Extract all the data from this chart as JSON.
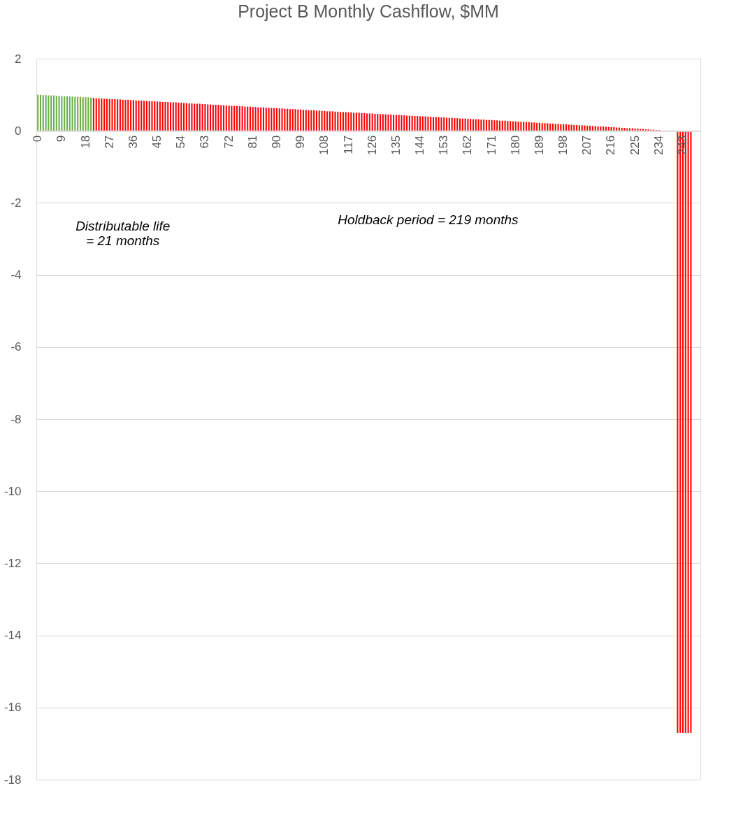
{
  "chart_data": {
    "type": "bar",
    "title": "Project B Monthly Cashflow, $MM",
    "categories": [
      "0",
      null,
      null,
      null,
      null,
      null,
      null,
      null,
      null,
      "9",
      null,
      null,
      null,
      null,
      null,
      null,
      null,
      null,
      "18",
      null,
      null,
      null,
      null,
      null,
      null,
      null,
      null,
      "27",
      null,
      null,
      null,
      null,
      null,
      null,
      null,
      null,
      "36",
      null,
      null,
      null,
      null,
      null,
      null,
      null,
      null,
      "45",
      null,
      null,
      null,
      null,
      null,
      null,
      null,
      null,
      "54",
      null,
      null,
      null,
      null,
      null,
      null,
      null,
      null,
      "63",
      null,
      null,
      null,
      null,
      null,
      null,
      null,
      null,
      "72",
      null,
      null,
      null,
      null,
      null,
      null,
      null,
      null,
      "81",
      null,
      null,
      null,
      null,
      null,
      null,
      null,
      null,
      "90",
      null,
      null,
      null,
      null,
      null,
      null,
      null,
      null,
      "99",
      null,
      null,
      null,
      null,
      null,
      null,
      null,
      null,
      "108",
      null,
      null,
      null,
      null,
      null,
      null,
      null,
      null,
      "117",
      null,
      null,
      null,
      null,
      null,
      null,
      null,
      null,
      "126",
      null,
      null,
      null,
      null,
      null,
      null,
      null,
      null,
      "135",
      null,
      null,
      null,
      null,
      null,
      null,
      null,
      null,
      "144",
      null,
      null,
      null,
      null,
      null,
      null,
      null,
      null,
      "153",
      null,
      null,
      null,
      null,
      null,
      null,
      null,
      null,
      "162",
      null,
      null,
      null,
      null,
      null,
      null,
      null,
      null,
      "171",
      null,
      null,
      null,
      null,
      null,
      null,
      null,
      null,
      "180",
      null,
      null,
      null,
      null,
      null,
      null,
      null,
      null,
      "189",
      null,
      null,
      null,
      null,
      null,
      null,
      null,
      null,
      "198",
      null,
      null,
      null,
      null,
      null,
      null,
      null,
      null,
      "207",
      null,
      null,
      null,
      null,
      null,
      null,
      null,
      null,
      "216",
      null,
      null,
      null,
      null,
      null,
      null,
      null,
      null,
      "225",
      null,
      null,
      null,
      null,
      null,
      null,
      null,
      null,
      "234",
      null,
      null,
      null,
      null,
      null,
      null,
      null,
      null,
      "243",
      null,
      null,
      null,
      null,
      null,
      null
    ],
    "values": [
      1.0,
      1.0,
      0.99,
      0.99,
      0.98,
      0.98,
      0.98,
      0.97,
      0.97,
      0.96,
      0.96,
      0.96,
      0.95,
      0.95,
      0.94,
      0.94,
      0.94,
      0.93,
      0.93,
      0.93,
      0.92,
      0.91,
      0.9,
      0.9,
      0.9,
      0.89,
      0.89,
      0.88,
      0.88,
      0.88,
      0.87,
      0.87,
      0.86,
      0.86,
      0.86,
      0.85,
      0.85,
      0.84,
      0.84,
      0.84,
      0.83,
      0.83,
      0.82,
      0.82,
      0.82,
      0.81,
      0.81,
      0.8,
      0.8,
      0.8,
      0.79,
      0.79,
      0.79,
      0.78,
      0.78,
      0.77,
      0.77,
      0.76,
      0.76,
      0.75,
      0.75,
      0.75,
      0.74,
      0.74,
      0.73,
      0.73,
      0.72,
      0.72,
      0.72,
      0.71,
      0.71,
      0.7,
      0.7,
      0.69,
      0.69,
      0.69,
      0.68,
      0.68,
      0.67,
      0.67,
      0.67,
      0.66,
      0.66,
      0.65,
      0.65,
      0.65,
      0.64,
      0.64,
      0.63,
      0.63,
      0.63,
      0.62,
      0.62,
      0.61,
      0.61,
      0.6,
      0.6,
      0.6,
      0.59,
      0.59,
      0.58,
      0.58,
      0.57,
      0.57,
      0.57,
      0.56,
      0.56,
      0.55,
      0.55,
      0.54,
      0.54,
      0.54,
      0.53,
      0.53,
      0.52,
      0.52,
      0.52,
      0.51,
      0.51,
      0.5,
      0.5,
      0.5,
      0.49,
      0.49,
      0.48,
      0.48,
      0.48,
      0.47,
      0.47,
      0.46,
      0.46,
      0.46,
      0.45,
      0.45,
      0.44,
      0.44,
      0.44,
      0.43,
      0.43,
      0.42,
      0.42,
      0.42,
      0.41,
      0.41,
      0.4,
      0.4,
      0.4,
      0.39,
      0.39,
      0.38,
      0.38,
      0.38,
      0.37,
      0.37,
      0.36,
      0.36,
      0.36,
      0.35,
      0.35,
      0.34,
      0.34,
      0.34,
      0.33,
      0.33,
      0.32,
      0.32,
      0.32,
      0.31,
      0.31,
      0.3,
      0.3,
      0.3,
      0.29,
      0.29,
      0.28,
      0.28,
      0.28,
      0.27,
      0.27,
      0.26,
      0.26,
      0.25,
      0.25,
      0.25,
      0.24,
      0.24,
      0.23,
      0.23,
      0.22,
      0.22,
      0.21,
      0.21,
      0.21,
      0.2,
      0.2,
      0.19,
      0.19,
      0.18,
      0.18,
      0.18,
      0.17,
      0.17,
      0.16,
      0.16,
      0.15,
      0.15,
      0.15,
      0.14,
      0.14,
      0.13,
      0.13,
      0.12,
      0.12,
      0.12,
      0.11,
      0.11,
      0.1,
      0.1,
      0.09,
      0.09,
      0.08,
      0.08,
      0.07,
      0.07,
      0.07,
      0.06,
      0.06,
      0.05,
      0.05,
      0.04,
      0.04,
      0.03,
      0.03,
      0.02,
      0.02,
      null,
      null,
      0,
      0,
      0,
      0,
      -16.7,
      -16.7,
      -16.7,
      -16.7,
      -16.7,
      -16.7,
      null,
      null,
      null
    ],
    "colors": [
      "#70ad47",
      "#70ad47",
      "#70ad47",
      "#70ad47",
      "#70ad47",
      "#70ad47",
      "#70ad47",
      "#70ad47",
      "#70ad47",
      "#70ad47",
      "#70ad47",
      "#70ad47",
      "#70ad47",
      "#70ad47",
      "#70ad47",
      "#70ad47",
      "#70ad47",
      "#70ad47",
      "#70ad47",
      "#70ad47",
      "#70ad47",
      "#ff0000",
      "#ff0000",
      "#ff0000",
      "#ff0000",
      "#ff0000",
      "#ff0000",
      "#ff0000",
      "#ff0000",
      "#ff0000",
      "#ff0000",
      "#ff0000",
      "#ff0000",
      "#ff0000",
      "#ff0000",
      "#ff0000",
      "#ff0000",
      "#ff0000",
      "#ff0000",
      "#ff0000",
      "#ff0000",
      "#ff0000",
      "#ff0000",
      "#ff0000",
      "#ff0000",
      "#ff0000",
      "#ff0000",
      "#ff0000",
      "#ff0000",
      "#ff0000",
      "#ff0000",
      "#ff0000",
      "#ff0000",
      "#ff0000",
      "#ff0000",
      "#ff0000",
      "#ff0000",
      "#ff0000",
      "#ff0000",
      "#ff0000",
      "#ff0000",
      "#ff0000",
      "#ff0000",
      "#ff0000",
      "#ff0000",
      "#ff0000",
      "#ff0000",
      "#ff0000",
      "#ff0000",
      "#ff0000",
      "#ff0000",
      "#ff0000",
      "#ff0000",
      "#ff0000",
      "#ff0000",
      "#ff0000",
      "#ff0000",
      "#ff0000",
      "#ff0000",
      "#ff0000",
      "#ff0000",
      "#ff0000",
      "#ff0000",
      "#ff0000",
      "#ff0000",
      "#ff0000",
      "#ff0000",
      "#ff0000",
      "#ff0000",
      "#ff0000",
      "#ff0000",
      "#ff0000",
      "#ff0000",
      "#ff0000",
      "#ff0000",
      "#ff0000",
      "#ff0000",
      "#ff0000",
      "#ff0000",
      "#ff0000",
      "#ff0000",
      "#ff0000",
      "#ff0000",
      "#ff0000",
      "#ff0000",
      "#ff0000",
      "#ff0000",
      "#ff0000",
      "#ff0000",
      "#ff0000",
      "#ff0000",
      "#ff0000",
      "#ff0000",
      "#ff0000",
      "#ff0000",
      "#ff0000",
      "#ff0000",
      "#ff0000",
      "#ff0000",
      "#ff0000",
      "#ff0000",
      "#ff0000",
      "#ff0000",
      "#ff0000",
      "#ff0000",
      "#ff0000",
      "#ff0000",
      "#ff0000",
      "#ff0000",
      "#ff0000",
      "#ff0000",
      "#ff0000",
      "#ff0000",
      "#ff0000",
      "#ff0000",
      "#ff0000",
      "#ff0000",
      "#ff0000",
      "#ff0000",
      "#ff0000",
      "#ff0000",
      "#ff0000",
      "#ff0000",
      "#ff0000",
      "#ff0000",
      "#ff0000",
      "#ff0000",
      "#ff0000",
      "#ff0000",
      "#ff0000",
      "#ff0000",
      "#ff0000",
      "#ff0000",
      "#ff0000",
      "#ff0000",
      "#ff0000",
      "#ff0000",
      "#ff0000",
      "#ff0000",
      "#ff0000",
      "#ff0000",
      "#ff0000",
      "#ff0000",
      "#ff0000",
      "#ff0000",
      "#ff0000",
      "#ff0000",
      "#ff0000",
      "#ff0000",
      "#ff0000",
      "#ff0000",
      "#ff0000",
      "#ff0000",
      "#ff0000",
      "#ff0000",
      "#ff0000",
      "#ff0000",
      "#ff0000",
      "#ff0000",
      "#ff0000",
      "#ff0000",
      "#ff0000",
      "#ff0000",
      "#ff0000",
      "#ff0000",
      "#ff0000",
      "#ff0000",
      "#ff0000",
      "#ff0000",
      "#ff0000",
      "#ff0000",
      "#ff0000",
      "#ff0000",
      "#ff0000",
      "#ff0000",
      "#ff0000",
      "#ff0000",
      "#ff0000",
      "#ff0000",
      "#ff0000",
      "#ff0000",
      "#ff0000",
      "#ff0000",
      "#ff0000",
      "#ff0000",
      "#ff0000",
      "#ff0000",
      "#ff0000",
      "#ff0000",
      "#ff0000",
      "#ff0000",
      "#ff0000",
      "#ff0000",
      "#ff0000",
      "#ff0000",
      "#ff0000",
      "#ff0000",
      "#ff0000",
      "#ff0000",
      "#ff0000",
      "#ff0000",
      "#ff0000",
      "#ff0000",
      "#ff0000",
      "#ff0000",
      "#ff0000",
      "#ff0000",
      "#ff0000",
      "#ff0000",
      "#ff0000",
      "#ff0000",
      "#ff0000",
      "#ff0000",
      "#ff0000",
      "#ff0000",
      "#ff0000",
      "#ff0000",
      "#ff0000",
      "#ff0000",
      "#ff0000",
      "#ff0000",
      "#ff0000",
      "#ff0000",
      "#ff0000",
      "#ff0000",
      "#ff0000",
      "#ff0000",
      "#ff0000",
      "#ff0000",
      "#ff0000"
    ],
    "ylim": [
      -18,
      2
    ],
    "yticks": [
      2,
      0,
      -2,
      -4,
      -6,
      -8,
      -10,
      -12,
      -14,
      -16,
      -18
    ],
    "grid": "y",
    "annotations": [
      "Distributable life\n= 21 months",
      "Holdback period = 219 months"
    ]
  }
}
